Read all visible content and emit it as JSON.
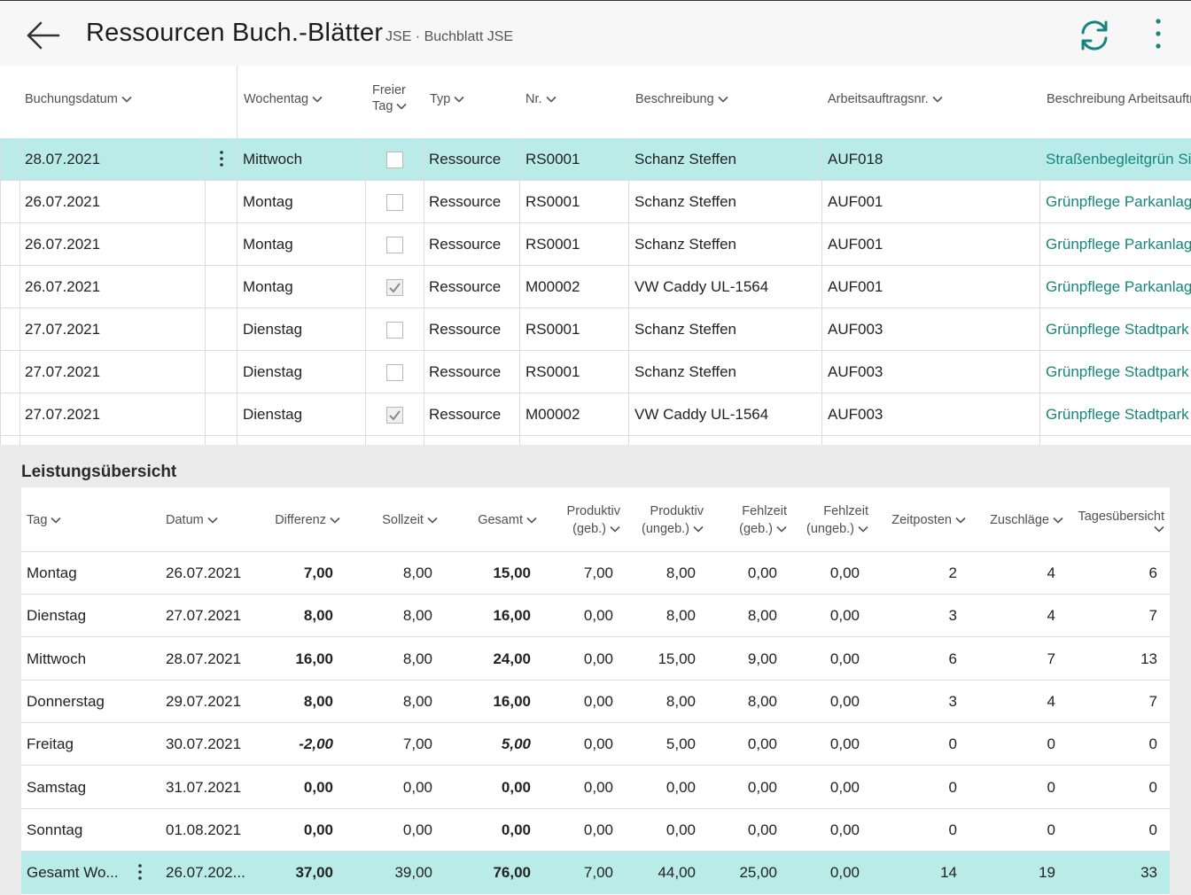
{
  "header": {
    "title": "Ressourcen Buch.-Blätter",
    "subtitle": "JSE · Buchblatt JSE"
  },
  "journal": {
    "columns": {
      "buchungsdatum": "Buchungsdatum",
      "wochentag": "Wochentag",
      "freier_tag_1": "Freier",
      "freier_tag_2": "Tag",
      "typ": "Typ",
      "nr": "Nr.",
      "beschreibung": "Beschreibung",
      "arbeitsauftragsnr": "Arbeitsauftragsnr.",
      "beschreibung_arbeitsauftrag": "Beschreibung Arbeitsauftr"
    },
    "rows": [
      {
        "datum": "28.07.2021",
        "wochentag": "Mittwoch",
        "freier_tag": false,
        "typ": "Ressource",
        "nr": "RS0001",
        "beschreibung": "Schanz Steffen",
        "auftrag": "AUF018",
        "auftrag_beschreibung": "Straßenbegleitgrün Sie"
      },
      {
        "datum": "26.07.2021",
        "wochentag": "Montag",
        "freier_tag": false,
        "typ": "Ressource",
        "nr": "RS0001",
        "beschreibung": "Schanz Steffen",
        "auftrag": "AUF001",
        "auftrag_beschreibung": "Grünpflege Parkanlage"
      },
      {
        "datum": "26.07.2021",
        "wochentag": "Montag",
        "freier_tag": false,
        "typ": "Ressource",
        "nr": "RS0001",
        "beschreibung": "Schanz Steffen",
        "auftrag": "AUF001",
        "auftrag_beschreibung": "Grünpflege Parkanlage"
      },
      {
        "datum": "26.07.2021",
        "wochentag": "Montag",
        "freier_tag": true,
        "typ": "Ressource",
        "nr": "M00002",
        "beschreibung": "VW Caddy UL-1564",
        "auftrag": "AUF001",
        "auftrag_beschreibung": "Grünpflege Parkanlage"
      },
      {
        "datum": "27.07.2021",
        "wochentag": "Dienstag",
        "freier_tag": false,
        "typ": "Ressource",
        "nr": "RS0001",
        "beschreibung": "Schanz Steffen",
        "auftrag": "AUF003",
        "auftrag_beschreibung": "Grünpflege Stadtpark"
      },
      {
        "datum": "27.07.2021",
        "wochentag": "Dienstag",
        "freier_tag": false,
        "typ": "Ressource",
        "nr": "RS0001",
        "beschreibung": "Schanz Steffen",
        "auftrag": "AUF003",
        "auftrag_beschreibung": "Grünpflege Stadtpark"
      },
      {
        "datum": "27.07.2021",
        "wochentag": "Dienstag",
        "freier_tag": true,
        "typ": "Ressource",
        "nr": "M00002",
        "beschreibung": "VW Caddy UL-1564",
        "auftrag": "AUF003",
        "auftrag_beschreibung": "Grünpflege Stadtpark"
      }
    ]
  },
  "overview": {
    "title": "Leistungsübersicht",
    "columns": {
      "tag": "Tag",
      "datum": "Datum",
      "differenz": "Differenz",
      "sollzeit": "Sollzeit",
      "gesamt": "Gesamt",
      "prod_geb_1": "Produktiv",
      "prod_geb_2": "(geb.)",
      "prod_ungeb_1": "Produktiv",
      "prod_ungeb_2": "(ungeb.)",
      "fehl_geb_1": "Fehlzeit",
      "fehl_geb_2": "(geb.)",
      "fehl_ungeb_1": "Fehlzeit",
      "fehl_ungeb_2": "(ungeb.)",
      "zeitposten": "Zeitposten",
      "zuschlaege": "Zuschläge",
      "tagesuebersicht": "Tagesübersicht"
    },
    "rows": [
      {
        "tag": "Montag",
        "datum": "26.07.2021",
        "differenz": "7,00",
        "diff_style": "teal-b",
        "sollzeit": "8,00",
        "gesamt": "15,00",
        "gesamt_style": "teal-b",
        "prod_geb": "7,00",
        "prod_ungeb": "8,00",
        "fehl_geb": "0,00",
        "fehl_ungeb": "0,00",
        "zeitposten": "2",
        "zuschlaege": "4",
        "tagesuebersicht": "6"
      },
      {
        "tag": "Dienstag",
        "datum": "27.07.2021",
        "differenz": "8,00",
        "diff_style": "teal-b",
        "sollzeit": "8,00",
        "gesamt": "16,00",
        "gesamt_style": "teal-b",
        "prod_geb": "0,00",
        "prod_ungeb": "8,00",
        "fehl_geb": "8,00",
        "fehl_ungeb": "0,00",
        "zeitposten": "3",
        "zuschlaege": "4",
        "tagesuebersicht": "7"
      },
      {
        "tag": "Mittwoch",
        "datum": "28.07.2021",
        "differenz": "16,00",
        "diff_style": "teal-b",
        "sollzeit": "8,00",
        "gesamt": "24,00",
        "gesamt_style": "teal-b",
        "prod_geb": "0,00",
        "prod_ungeb": "15,00",
        "fehl_geb": "9,00",
        "fehl_ungeb": "0,00",
        "zeitposten": "6",
        "zuschlaege": "7",
        "tagesuebersicht": "13"
      },
      {
        "tag": "Donnerstag",
        "datum": "29.07.2021",
        "differenz": "8,00",
        "diff_style": "teal-b",
        "sollzeit": "8,00",
        "gesamt": "16,00",
        "gesamt_style": "teal-b",
        "prod_geb": "0,00",
        "prod_ungeb": "8,00",
        "fehl_geb": "8,00",
        "fehl_ungeb": "0,00",
        "zeitposten": "3",
        "zuschlaege": "4",
        "tagesuebersicht": "7"
      },
      {
        "tag": "Freitag",
        "datum": "30.07.2021",
        "differenz": "-2,00",
        "diff_style": "red-b",
        "sollzeit": "7,00",
        "gesamt": "5,00",
        "gesamt_style": "red-b",
        "prod_geb": "0,00",
        "prod_ungeb": "5,00",
        "fehl_geb": "0,00",
        "fehl_ungeb": "0,00",
        "zeitposten": "0",
        "zuschlaege": "0",
        "tagesuebersicht": "0"
      },
      {
        "tag": "Samstag",
        "datum": "31.07.2021",
        "differenz": "0,00",
        "diff_style": "green-b",
        "sollzeit": "0,00",
        "gesamt": "0,00",
        "gesamt_style": "green-b",
        "prod_geb": "0,00",
        "prod_ungeb": "0,00",
        "fehl_geb": "0,00",
        "fehl_ungeb": "0,00",
        "zeitposten": "0",
        "zuschlaege": "0",
        "tagesuebersicht": "0"
      },
      {
        "tag": "Sonntag",
        "datum": "01.08.2021",
        "differenz": "0,00",
        "diff_style": "green-b",
        "sollzeit": "0,00",
        "gesamt": "0,00",
        "gesamt_style": "green-b",
        "prod_geb": "0,00",
        "prod_ungeb": "0,00",
        "fehl_geb": "0,00",
        "fehl_ungeb": "0,00",
        "zeitposten": "0",
        "zuschlaege": "0",
        "tagesuebersicht": "0"
      }
    ],
    "total": {
      "tag": "Gesamt Wo...",
      "datum": "26.07.202...",
      "differenz": "37,00",
      "sollzeit": "39,00",
      "gesamt": "76,00",
      "prod_geb": "7,00",
      "prod_ungeb": "44,00",
      "fehl_geb": "25,00",
      "fehl_ungeb": "0,00",
      "zeitposten": "14",
      "zuschlaege": "19",
      "tagesuebersicht": "33"
    }
  },
  "colors": {
    "accent": "#18857c",
    "selected_row": "#b9ece9",
    "negative": "#c4122f",
    "zero": "#2b8c1f"
  }
}
